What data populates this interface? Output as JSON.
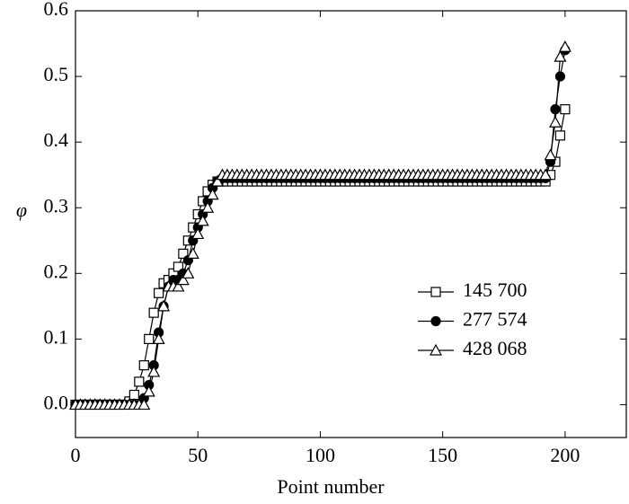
{
  "chart_data": {
    "type": "line",
    "x_label": "Point number",
    "y_label": "φ",
    "x": [
      0,
      2,
      4,
      6,
      8,
      10,
      12,
      14,
      16,
      18,
      20,
      22,
      24,
      26,
      28,
      30,
      32,
      34,
      36,
      38,
      40,
      42,
      44,
      46,
      48,
      50,
      52,
      54,
      56,
      58,
      60,
      62,
      64,
      66,
      68,
      70,
      72,
      74,
      76,
      78,
      80,
      82,
      84,
      86,
      88,
      90,
      92,
      94,
      96,
      98,
      100,
      102,
      104,
      106,
      108,
      110,
      112,
      114,
      116,
      118,
      120,
      122,
      124,
      126,
      128,
      130,
      132,
      134,
      136,
      138,
      140,
      142,
      144,
      146,
      148,
      150,
      152,
      154,
      156,
      158,
      160,
      162,
      164,
      166,
      168,
      170,
      172,
      174,
      176,
      178,
      180,
      182,
      184,
      186,
      188,
      190,
      192,
      194,
      196,
      198,
      200
    ],
    "series": [
      {
        "name": "145 700",
        "color": "#000000",
        "marker": "square",
        "filled": false,
        "values": [
          0,
          0,
          0,
          0,
          0,
          0,
          0,
          0,
          0,
          0,
          0,
          0.005,
          0.015,
          0.035,
          0.06,
          0.1,
          0.14,
          0.17,
          0.185,
          0.19,
          0.2,
          0.21,
          0.23,
          0.25,
          0.27,
          0.29,
          0.31,
          0.325,
          0.335,
          0.34,
          0.34,
          0.34,
          0.34,
          0.34,
          0.34,
          0.34,
          0.34,
          0.34,
          0.34,
          0.34,
          0.34,
          0.34,
          0.34,
          0.34,
          0.34,
          0.34,
          0.34,
          0.34,
          0.34,
          0.34,
          0.34,
          0.34,
          0.34,
          0.34,
          0.34,
          0.34,
          0.34,
          0.34,
          0.34,
          0.34,
          0.34,
          0.34,
          0.34,
          0.34,
          0.34,
          0.34,
          0.34,
          0.34,
          0.34,
          0.34,
          0.34,
          0.34,
          0.34,
          0.34,
          0.34,
          0.34,
          0.34,
          0.34,
          0.34,
          0.34,
          0.34,
          0.34,
          0.34,
          0.34,
          0.34,
          0.34,
          0.34,
          0.34,
          0.34,
          0.34,
          0.34,
          0.34,
          0.34,
          0.34,
          0.34,
          0.34,
          0.34,
          0.35,
          0.37,
          0.41,
          0.45
        ]
      },
      {
        "name": "277 574",
        "color": "#000000",
        "marker": "circle",
        "filled": true,
        "values": [
          0,
          0,
          0,
          0,
          0,
          0,
          0,
          0,
          0,
          0,
          0,
          0,
          0,
          0,
          0.01,
          0.03,
          0.06,
          0.11,
          0.15,
          0.18,
          0.19,
          0.19,
          0.2,
          0.22,
          0.25,
          0.27,
          0.29,
          0.31,
          0.33,
          0.34,
          0.345,
          0.345,
          0.345,
          0.345,
          0.345,
          0.345,
          0.345,
          0.345,
          0.345,
          0.345,
          0.345,
          0.345,
          0.345,
          0.345,
          0.345,
          0.345,
          0.345,
          0.345,
          0.345,
          0.345,
          0.345,
          0.345,
          0.345,
          0.345,
          0.345,
          0.345,
          0.345,
          0.345,
          0.345,
          0.345,
          0.345,
          0.345,
          0.345,
          0.345,
          0.345,
          0.345,
          0.345,
          0.345,
          0.345,
          0.345,
          0.345,
          0.345,
          0.345,
          0.345,
          0.345,
          0.345,
          0.345,
          0.345,
          0.345,
          0.345,
          0.345,
          0.345,
          0.345,
          0.345,
          0.345,
          0.345,
          0.345,
          0.345,
          0.345,
          0.345,
          0.345,
          0.345,
          0.345,
          0.345,
          0.345,
          0.345,
          0.345,
          0.37,
          0.45,
          0.5,
          0.54
        ]
      },
      {
        "name": "428 068",
        "color": "#000000",
        "marker": "triangle",
        "filled": false,
        "values": [
          0,
          0,
          0,
          0,
          0,
          0,
          0,
          0,
          0,
          0,
          0,
          0,
          0,
          0,
          0,
          0.02,
          0.05,
          0.1,
          0.15,
          0.18,
          0.18,
          0.18,
          0.19,
          0.2,
          0.23,
          0.26,
          0.28,
          0.3,
          0.32,
          0.34,
          0.35,
          0.35,
          0.35,
          0.35,
          0.35,
          0.35,
          0.35,
          0.35,
          0.35,
          0.35,
          0.35,
          0.35,
          0.35,
          0.35,
          0.35,
          0.35,
          0.35,
          0.35,
          0.35,
          0.35,
          0.35,
          0.35,
          0.35,
          0.35,
          0.35,
          0.35,
          0.35,
          0.35,
          0.35,
          0.35,
          0.35,
          0.35,
          0.35,
          0.35,
          0.35,
          0.35,
          0.35,
          0.35,
          0.35,
          0.35,
          0.35,
          0.35,
          0.35,
          0.35,
          0.35,
          0.35,
          0.35,
          0.35,
          0.35,
          0.35,
          0.35,
          0.35,
          0.35,
          0.35,
          0.35,
          0.35,
          0.35,
          0.35,
          0.35,
          0.35,
          0.35,
          0.35,
          0.35,
          0.35,
          0.35,
          0.35,
          0.35,
          0.38,
          0.43,
          0.53,
          0.545
        ]
      }
    ],
    "xlim": [
      0,
      225
    ],
    "xticks": [
      0,
      50,
      100,
      150,
      200
    ],
    "ylim": [
      -0.05,
      0.6
    ],
    "yticks": [
      {
        "value": 0,
        "label": "0.0"
      },
      0.1,
      0.2,
      0.3,
      0.4,
      0.5,
      0.6
    ],
    "legend": "lower right",
    "grid": false
  }
}
